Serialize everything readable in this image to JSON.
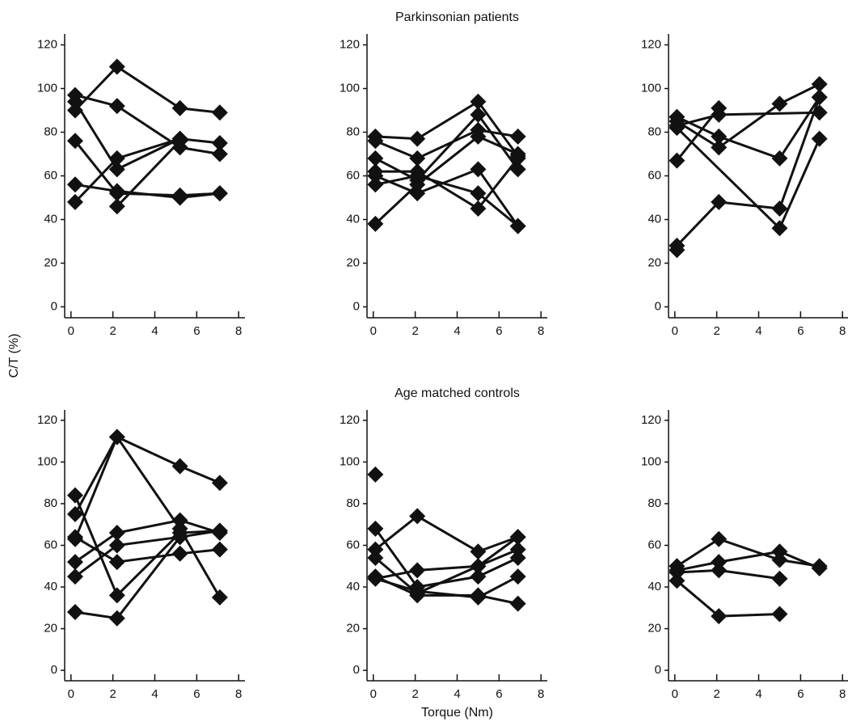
{
  "chart_data": [
    {
      "type": "line",
      "xlim": [
        -0.3,
        8.3
      ],
      "ylim": [
        -5,
        125
      ],
      "xticks": [
        0,
        2,
        4,
        6,
        8
      ],
      "yticks": [
        0,
        20,
        40,
        60,
        80,
        100,
        120
      ],
      "color": "#111111",
      "ylabel": "C/T (%)",
      "series": [
        {
          "x": [
            0.2,
            2.2,
            5.2,
            7.1
          ],
          "values": [
            90,
            110,
            91,
            89
          ]
        },
        {
          "x": [
            0.2,
            2.2,
            5.2,
            7.1
          ],
          "values": [
            97,
            92,
            73,
            70
          ]
        },
        {
          "x": [
            0.2,
            2.2,
            5.2,
            7.1
          ],
          "values": [
            76,
            52,
            51,
            52
          ]
        },
        {
          "x": [
            0.2,
            2.2,
            5.2,
            7.1
          ],
          "values": [
            56,
            53,
            50,
            52
          ]
        },
        {
          "x": [
            0.2,
            2.2,
            5.2,
            7.1
          ],
          "values": [
            48,
            68,
            77,
            75
          ]
        },
        {
          "x": [
            0.2,
            2.2,
            5.2
          ],
          "values": [
            94,
            63,
            77
          ]
        },
        {
          "x": [
            2.2,
            5.2
          ],
          "values": [
            46,
            76
          ]
        }
      ]
    },
    {
      "type": "line",
      "title": "Parkinsonian patients",
      "xlim": [
        -0.3,
        8.3
      ],
      "ylim": [
        -5,
        125
      ],
      "xticks": [
        0,
        2,
        4,
        6,
        8
      ],
      "yticks": [
        0,
        20,
        40,
        60,
        80,
        100,
        120
      ],
      "color": "#111111",
      "series": [
        {
          "x": [
            0.1,
            2.1,
            5.0,
            6.9
          ],
          "values": [
            78,
            77,
            94,
            69
          ]
        },
        {
          "x": [
            0.1,
            2.1,
            5.0,
            6.9
          ],
          "values": [
            76,
            68,
            81,
            78
          ]
        },
        {
          "x": [
            0.1,
            2.1,
            5.0,
            6.9
          ],
          "values": [
            68,
            58,
            88,
            63
          ]
        },
        {
          "x": [
            0.1,
            2.1,
            5.0,
            6.9
          ],
          "values": [
            62,
            62,
            45,
            68
          ]
        },
        {
          "x": [
            0.1,
            2.1,
            5.0,
            6.9
          ],
          "values": [
            60,
            52,
            63,
            37
          ]
        },
        {
          "x": [
            0.1,
            2.1,
            5.0,
            6.9
          ],
          "values": [
            56,
            60,
            52,
            37
          ]
        },
        {
          "x": [
            0.1,
            2.1,
            5.0,
            6.9
          ],
          "values": [
            38,
            56,
            78,
            70
          ]
        }
      ]
    },
    {
      "type": "line",
      "xlim": [
        -0.3,
        8.3
      ],
      "ylim": [
        -5,
        125
      ],
      "xticks": [
        0,
        2,
        4,
        6,
        8
      ],
      "yticks": [
        0,
        20,
        40,
        60,
        80,
        100,
        120
      ],
      "color": "#111111",
      "series": [
        {
          "x": [
            0.1,
            2.1,
            5.0,
            6.9
          ],
          "values": [
            87,
            78,
            68,
            96
          ]
        },
        {
          "x": [
            0.1,
            2.1,
            5.0,
            6.9
          ],
          "values": [
            85,
            73,
            93,
            102
          ]
        },
        {
          "x": [
            0.1,
            2.1,
            6.9
          ],
          "values": [
            83,
            88,
            89
          ]
        },
        {
          "x": [
            0.1,
            2.1
          ],
          "values": [
            67,
            91
          ]
        },
        {
          "x": [
            0.1,
            5.0,
            6.9
          ],
          "values": [
            82,
            36,
            77
          ]
        },
        {
          "x": [
            0.1,
            2.1,
            5.0,
            6.9
          ],
          "values": [
            28,
            48,
            45,
            96
          ]
        },
        {
          "x": [
            0.1
          ],
          "values": [
            26
          ]
        }
      ]
    },
    {
      "type": "line",
      "xlim": [
        -0.3,
        8.3
      ],
      "ylim": [
        -5,
        125
      ],
      "xticks": [
        0,
        2,
        4,
        6,
        8
      ],
      "yticks": [
        0,
        20,
        40,
        60,
        80,
        100,
        120
      ],
      "color": "#111111",
      "series": [
        {
          "x": [
            0.2,
            2.2,
            5.2,
            7.1
          ],
          "values": [
            84,
            36,
            66,
            67
          ]
        },
        {
          "x": [
            0.2,
            2.2,
            5.2,
            7.1
          ],
          "values": [
            75,
            112,
            98,
            90
          ]
        },
        {
          "x": [
            0.2,
            2.2,
            5.2,
            7.1
          ],
          "values": [
            63,
            112,
            68,
            35
          ]
        },
        {
          "x": [
            0.2,
            2.2,
            5.2,
            7.1
          ],
          "values": [
            52,
            66,
            72,
            66
          ]
        },
        {
          "x": [
            0.2,
            2.2,
            5.2,
            7.1
          ],
          "values": [
            45,
            60,
            64,
            67
          ]
        },
        {
          "x": [
            0.2,
            2.2,
            5.2
          ],
          "values": [
            28,
            25,
            64
          ]
        },
        {
          "x": [
            0.2,
            2.2,
            5.2,
            7.1
          ],
          "values": [
            64,
            52,
            56,
            58
          ]
        }
      ]
    },
    {
      "type": "line",
      "title": "Age matched controls",
      "xlabel": "Torque (Nm)",
      "xlim": [
        -0.3,
        8.3
      ],
      "ylim": [
        -5,
        125
      ],
      "xticks": [
        0,
        2,
        4,
        6,
        8
      ],
      "yticks": [
        0,
        20,
        40,
        60,
        80,
        100,
        120
      ],
      "color": "#111111",
      "series": [
        {
          "x": [
            0.1
          ],
          "values": [
            94
          ]
        },
        {
          "x": [
            0.1,
            2.1,
            5.0,
            6.9
          ],
          "values": [
            68,
            40,
            45,
            54
          ]
        },
        {
          "x": [
            0.1,
            2.1,
            5.0,
            6.9
          ],
          "values": [
            58,
            74,
            57,
            64
          ]
        },
        {
          "x": [
            0.1,
            2.1,
            5.0,
            6.9
          ],
          "values": [
            54,
            37,
            50,
            64
          ]
        },
        {
          "x": [
            0.1,
            2.1,
            5.0,
            6.9
          ],
          "values": [
            44,
            48,
            50,
            58
          ]
        },
        {
          "x": [
            0.1,
            2.1,
            5.0,
            6.9
          ],
          "values": [
            44,
            38,
            35,
            45
          ]
        },
        {
          "x": [
            0.1,
            2.1,
            5.0,
            6.9
          ],
          "values": [
            45,
            36,
            36,
            32
          ]
        }
      ]
    },
    {
      "type": "line",
      "xlim": [
        -0.3,
        8.3
      ],
      "ylim": [
        -5,
        125
      ],
      "xticks": [
        0,
        2,
        4,
        6,
        8
      ],
      "yticks": [
        0,
        20,
        40,
        60,
        80,
        100,
        120
      ],
      "color": "#111111",
      "series": [
        {
          "x": [
            0.1,
            2.1,
            5.0,
            6.9
          ],
          "values": [
            50,
            63,
            53,
            50
          ]
        },
        {
          "x": [
            0.1,
            2.1,
            5.0,
            6.9
          ],
          "values": [
            48,
            52,
            57,
            49
          ]
        },
        {
          "x": [
            0.1,
            2.1,
            5.0
          ],
          "values": [
            47,
            48,
            44
          ]
        },
        {
          "x": [
            0.1,
            2.1,
            5.0
          ],
          "values": [
            43,
            26,
            27
          ]
        }
      ]
    }
  ]
}
